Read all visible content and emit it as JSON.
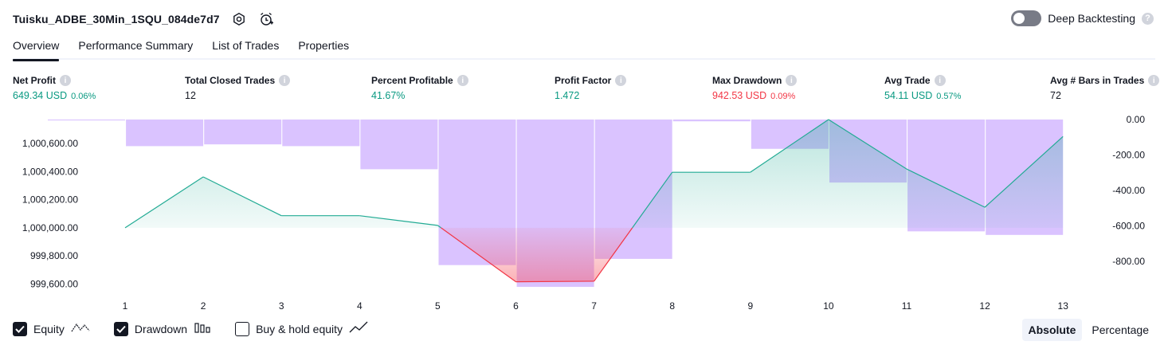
{
  "header": {
    "title": "Tuisku_ADBE_30Min_1SQU_084de7d7",
    "deep_backtesting_label": "Deep Backtesting",
    "deep_backtesting_enabled": false,
    "help_glyph": "?"
  },
  "tabs": [
    {
      "label": "Overview",
      "active": true
    },
    {
      "label": "Performance Summary",
      "active": false
    },
    {
      "label": "List of Trades",
      "active": false
    },
    {
      "label": "Properties",
      "active": false
    }
  ],
  "metrics": [
    {
      "label": "Net Profit",
      "value": "649.34 USD",
      "pct": "0.06%",
      "tone": "pos"
    },
    {
      "label": "Total Closed Trades",
      "value": "12",
      "pct": "",
      "tone": "neutral"
    },
    {
      "label": "Percent Profitable",
      "value": "41.67%",
      "pct": "",
      "tone": "pos"
    },
    {
      "label": "Profit Factor",
      "value": "1.472",
      "pct": "",
      "tone": "pos"
    },
    {
      "label": "Max Drawdown",
      "value": "942.53 USD",
      "pct": "0.09%",
      "tone": "neg"
    },
    {
      "label": "Avg Trade",
      "value": "54.11 USD",
      "pct": "0.57%",
      "tone": "pos"
    },
    {
      "label": "Avg # Bars in Trades",
      "value": "72",
      "pct": "",
      "tone": "neutral"
    }
  ],
  "chart_data": {
    "type": "line",
    "x": [
      1,
      2,
      3,
      4,
      5,
      6,
      7,
      8,
      9,
      10,
      11,
      12,
      13
    ],
    "x_tick_labels": [
      "1",
      "2",
      "3",
      "4",
      "5",
      "6",
      "7",
      "8",
      "9",
      "10",
      "11",
      "12",
      "13"
    ],
    "series": [
      {
        "name": "Equity",
        "chart": "area",
        "axis": "left",
        "values": [
          1000000,
          1000362,
          1000086,
          1000086,
          1000017,
          999616,
          999620,
          1000395,
          1000395,
          1000770,
          1000418,
          1000146,
          1000649
        ]
      },
      {
        "name": "Drawdown",
        "chart": "bar",
        "axis": "right",
        "values": [
          -5,
          -150,
          -140,
          -150,
          -280,
          -820,
          -942.53,
          -785,
          -10,
          -165,
          -355,
          -630,
          -650
        ]
      }
    ],
    "left_axis": {
      "ticks": [
        "1,000,600.00",
        "1,000,400.00",
        "1,000,200.00",
        "1,000,000.00",
        "999,800.00",
        "999,600.00"
      ],
      "range": [
        999580,
        1000770
      ]
    },
    "right_axis": {
      "ticks": [
        "0.00",
        "-200.00",
        "-400.00",
        "-600.00",
        "-800.00"
      ],
      "range": [
        -942.53,
        0
      ]
    },
    "colors": {
      "equity_line": "#22ab94",
      "equity_fill": "#22ab94",
      "equity_loss_line": "#f23645",
      "equity_loss_fill": "#f7525f",
      "drawdown_bar": "#c29bff",
      "grid": "#f0f3fa"
    },
    "grid": true
  },
  "legend": [
    {
      "label": "Equity",
      "checked": true,
      "icon": "equity-line-icon"
    },
    {
      "label": "Drawdown",
      "checked": true,
      "icon": "drawdown-bars-icon"
    },
    {
      "label": "Buy & hold equity",
      "checked": false,
      "icon": "buy-hold-line-icon"
    }
  ],
  "mode": {
    "absolute_label": "Absolute",
    "percentage_label": "Percentage",
    "selected": "Absolute"
  }
}
